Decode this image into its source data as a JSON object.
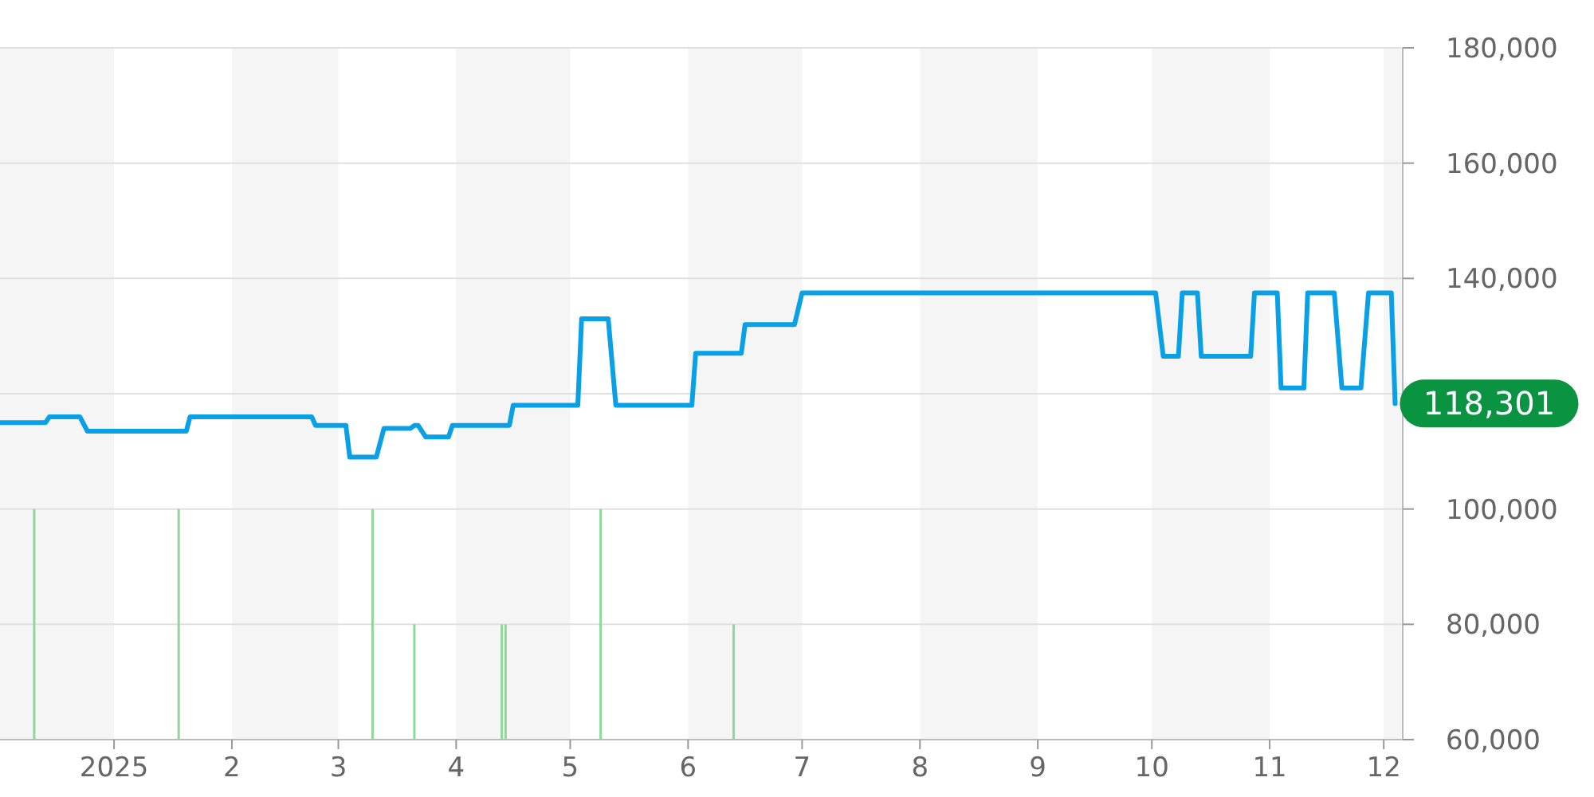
{
  "chart_data": {
    "type": "line",
    "xlim": [
      "2024-12-02",
      "2025-12-06"
    ],
    "ylim": [
      60000,
      180000
    ],
    "xticks": [
      {
        "value": "2025-01-01",
        "label": "2025"
      },
      {
        "value": "2025-02-01",
        "label": "2"
      },
      {
        "value": "2025-03-01",
        "label": "3"
      },
      {
        "value": "2025-04-01",
        "label": "4"
      },
      {
        "value": "2025-05-01",
        "label": "5"
      },
      {
        "value": "2025-06-01",
        "label": "6"
      },
      {
        "value": "2025-07-01",
        "label": "7"
      },
      {
        "value": "2025-08-01",
        "label": "8"
      },
      {
        "value": "2025-09-01",
        "label": "9"
      },
      {
        "value": "2025-10-01",
        "label": "10"
      },
      {
        "value": "2025-11-01",
        "label": "11"
      },
      {
        "value": "2025-12-01",
        "label": "12"
      }
    ],
    "yticks": [
      {
        "value": 60000,
        "label": "60,000"
      },
      {
        "value": 80000,
        "label": "80,000"
      },
      {
        "value": 100000,
        "label": "100,000"
      },
      {
        "value": 120000,
        "label": null
      },
      {
        "value": 140000,
        "label": "140,000"
      },
      {
        "value": 160000,
        "label": "160,000"
      },
      {
        "value": 180000,
        "label": "180,000"
      }
    ],
    "grid": "y",
    "marker": "none",
    "line_style": "solid",
    "series": [
      {
        "color": "#0aa0e6",
        "x": [
          "2024-12-02",
          "2024-12-14",
          "2024-12-15",
          "2024-12-23",
          "2024-12-25",
          "2025-01-20",
          "2025-01-21",
          "2025-02-22",
          "2025-02-23",
          "2025-03-03",
          "2025-03-04",
          "2025-03-11",
          "2025-03-13",
          "2025-03-20",
          "2025-03-21",
          "2025-03-22",
          "2025-03-24",
          "2025-03-30",
          "2025-03-31",
          "2025-04-15",
          "2025-04-16",
          "2025-05-03",
          "2025-05-04",
          "2025-05-11",
          "2025-05-13",
          "2025-06-02",
          "2025-06-03",
          "2025-06-15",
          "2025-06-16",
          "2025-06-29",
          "2025-07-01",
          "2025-10-02",
          "2025-10-04",
          "2025-10-08",
          "2025-10-09",
          "2025-10-13",
          "2025-10-14",
          "2025-10-27",
          "2025-10-28",
          "2025-11-03",
          "2025-11-04",
          "2025-11-10",
          "2025-11-11",
          "2025-11-18",
          "2025-11-20",
          "2025-11-25",
          "2025-11-27",
          "2025-12-03",
          "2025-12-04"
        ],
        "values": [
          115000,
          115000,
          116000,
          116000,
          113500,
          113500,
          116000,
          116000,
          114500,
          114500,
          109000,
          109000,
          114000,
          114000,
          114500,
          114500,
          112500,
          112500,
          114500,
          114500,
          118000,
          118000,
          133000,
          133000,
          118000,
          118000,
          127000,
          127000,
          132000,
          132000,
          137500,
          137500,
          126500,
          126500,
          137500,
          137500,
          126500,
          126500,
          137500,
          137500,
          121000,
          121000,
          137500,
          137500,
          121000,
          121000,
          137500,
          137500,
          118301
        ]
      },
      {
        "type": "bar",
        "color": "#8fd89a",
        "x": [
          "2024-12-11",
          "2025-01-18",
          "2025-03-10",
          "2025-03-21",
          "2025-04-13",
          "2025-04-14",
          "2025-05-09",
          "2025-06-13"
        ],
        "values": [
          100000,
          100000,
          100000,
          80000,
          80000,
          80000,
          100000,
          80000
        ]
      }
    ],
    "bands": [
      {
        "axis": "x",
        "from": "2024-12-02",
        "to": "2025-01-01",
        "color": "#f5f5f5"
      },
      {
        "axis": "x",
        "from": "2025-02-01",
        "to": "2025-03-01",
        "color": "#f5f5f5"
      },
      {
        "axis": "x",
        "from": "2025-04-01",
        "to": "2025-05-01",
        "color": "#f5f5f5"
      },
      {
        "axis": "x",
        "from": "2025-06-01",
        "to": "2025-07-01",
        "color": "#f5f5f5"
      },
      {
        "axis": "x",
        "from": "2025-08-01",
        "to": "2025-09-01",
        "color": "#f5f5f5"
      },
      {
        "axis": "x",
        "from": "2025-10-01",
        "to": "2025-11-01",
        "color": "#f5f5f5"
      },
      {
        "axis": "x",
        "from": "2025-12-01",
        "to": "2025-12-06",
        "color": "#f5f5f5"
      }
    ],
    "annotations": [
      {
        "text": "118,301",
        "x": "2025-12-04",
        "y": 118301
      }
    ]
  }
}
